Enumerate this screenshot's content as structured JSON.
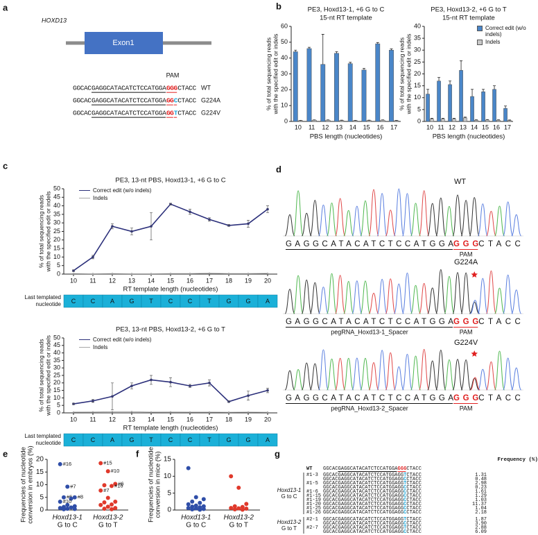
{
  "panel_labels": [
    "a",
    "b",
    "c",
    "d",
    "e",
    "f",
    "g"
  ],
  "panel_a": {
    "gene": "HOXD13",
    "exon": "Exon1",
    "pam": "PAM",
    "sequences": [
      {
        "label": "WT",
        "parts": [
          {
            "text": "GGCAC"
          },
          {
            "text": "GAGGCATACATCTCCATGGA",
            "style": "underline"
          },
          {
            "text": "GGG",
            "style": "pam"
          },
          {
            "text": "CTACC"
          }
        ]
      },
      {
        "label": "G224A",
        "parts": [
          {
            "text": "GGCAC"
          },
          {
            "text": "GAGGCATACATCTCCATGGA",
            "style": "underline"
          },
          {
            "text": "GG",
            "style": "pam"
          },
          {
            "text": "C",
            "style": "edit"
          },
          {
            "text": "CTACC"
          }
        ]
      },
      {
        "label": "G224V",
        "parts": [
          {
            "text": "GGCAC"
          },
          {
            "text": "GAGGCATACATCTCCATGGA",
            "style": "underline"
          },
          {
            "text": "GG",
            "style": "pam"
          },
          {
            "text": "T",
            "style": "edit"
          },
          {
            "text": "CTACC"
          }
        ]
      }
    ]
  },
  "chart_data": [
    {
      "type": "bar",
      "title": [
        "PE3, Hoxd13-1, +6 G to C",
        "15-nt RT template"
      ],
      "xlabel": "PBS length (nucleotides)",
      "ylabel": [
        "% of total sequencing reads",
        "with the specified edit or indels"
      ],
      "categories": [
        "10",
        "11",
        "12",
        "13",
        "14",
        "15",
        "16",
        "17"
      ],
      "series": [
        {
          "name": "Correct edit (w/o indels)",
          "color": "#4a86c8",
          "values": [
            44,
            46,
            36,
            43,
            36.5,
            32.5,
            49,
            45
          ],
          "errors": [
            1,
            0.8,
            19,
            1,
            0.8,
            1,
            0.8,
            0.8
          ]
        },
        {
          "name": "Indels",
          "color": "#c8c8c8",
          "values": [
            0.5,
            0.8,
            0.8,
            0.6,
            0.5,
            0.6,
            0.8,
            0.5
          ],
          "errors": [
            0.2,
            0.2,
            0.2,
            0.2,
            0.2,
            0.2,
            0.2,
            0.2
          ]
        }
      ],
      "ylim": [
        0,
        60
      ],
      "yticks": [
        0,
        10,
        20,
        30,
        40,
        50,
        60
      ]
    },
    {
      "type": "bar",
      "title": [
        "PE3, Hoxd13-2, +6 G to T",
        "15-nt RT template"
      ],
      "xlabel": "PBS length (nucleotides)",
      "ylabel": [
        "% of total sequencing reads",
        "with the specified edit or indels"
      ],
      "categories": [
        "10",
        "11",
        "12",
        "13",
        "14",
        "15",
        "16",
        "17"
      ],
      "series": [
        {
          "name": "Correct edit (w/o indels)",
          "color": "#4a86c8",
          "values": [
            11.5,
            17,
            15.5,
            21.5,
            10.5,
            12.5,
            13.5,
            5.5
          ],
          "errors": [
            2,
            1.5,
            1.5,
            4,
            3,
            1,
            1.5,
            1
          ]
        },
        {
          "name": "Indels",
          "color": "#c8c8c8",
          "values": [
            1,
            1,
            1,
            1.5,
            0.5,
            0.6,
            0.5,
            0.4
          ],
          "errors": [
            0.3,
            0.3,
            0.3,
            0.3,
            0.2,
            0.2,
            0.2,
            0.2
          ]
        }
      ],
      "ylim": [
        0,
        40
      ],
      "yticks": [
        0,
        5,
        10,
        15,
        20,
        25,
        30,
        35,
        40
      ],
      "legend": "upper right"
    },
    {
      "type": "line",
      "title": [
        "PE3, 13-nt PBS, Hoxd13-1, +6 G to C"
      ],
      "xlabel": "RT template length (nucleotides)",
      "ylabel": [
        "% of total sequencing reads",
        "with the specified edit or indels"
      ],
      "categories": [
        "10",
        "11",
        "12",
        "13",
        "14",
        "15",
        "16",
        "17",
        "18",
        "19",
        "20"
      ],
      "series": [
        {
          "name": "Correct edit (w/o indels)",
          "color": "#2b2f7a",
          "values": [
            2,
            10,
            28,
            25,
            28,
            41,
            36.5,
            32,
            28.5,
            29.5,
            38
          ],
          "errors": [
            0.5,
            1,
            1.5,
            2,
            8,
            0.5,
            1.5,
            1,
            0.5,
            2,
            2
          ]
        },
        {
          "name": "Indels",
          "color": "#a6a6a6",
          "values": [
            0.3,
            0.2,
            0.3,
            0.2,
            0.2,
            0.3,
            0.3,
            0.5,
            0.3,
            0.3,
            0.4
          ]
        }
      ],
      "ylim": [
        0,
        50
      ],
      "yticks": [
        0,
        5,
        10,
        15,
        20,
        25,
        30,
        35,
        40,
        45,
        50
      ],
      "legend": "upper left",
      "nucleotide_label": "Last templated nucleotide",
      "nucleotides": [
        "C",
        "C",
        "A",
        "G",
        "T",
        "C",
        "C",
        "T",
        "G",
        "G",
        "A"
      ]
    },
    {
      "type": "line",
      "title": [
        "PE3, 13-nt PBS, Hoxd13-2, +6 G to T"
      ],
      "xlabel": "RT template length (nucleotides)",
      "ylabel": [
        "% of total sequencing reads",
        "with the specified edit or indels"
      ],
      "categories": [
        "10",
        "11",
        "12",
        "13",
        "14",
        "15",
        "16",
        "17",
        "18",
        "19",
        "20"
      ],
      "series": [
        {
          "name": "Correct edit (w/o indels)",
          "color": "#2b2f7a",
          "values": [
            6,
            8,
            11,
            18,
            22,
            20.5,
            18,
            20,
            7.5,
            11.5,
            15
          ],
          "errors": [
            0.5,
            1,
            9,
            2,
            3,
            3,
            1,
            2,
            0.5,
            3,
            1.5
          ]
        },
        {
          "name": "Indels",
          "color": "#a6a6a6",
          "values": [
            0.5,
            0.6,
            0.8,
            0.8,
            0.5,
            0.6,
            0.5,
            0.5,
            0.4,
            0.5,
            0.4
          ]
        }
      ],
      "ylim": [
        0,
        50
      ],
      "yticks": [
        0,
        5,
        10,
        15,
        20,
        25,
        30,
        35,
        40,
        45,
        50
      ],
      "legend": "upper left",
      "nucleotide_label": "Last templated nucleotide",
      "nucleotides": [
        "C",
        "C",
        "A",
        "G",
        "T",
        "C",
        "C",
        "T",
        "G",
        "G",
        "A"
      ]
    },
    {
      "type": "strip",
      "ylabel": [
        "Frequencies of nucleotide",
        "conversion in embryos (%)"
      ],
      "categories": [
        [
          "Hoxd13-1",
          "G to C"
        ],
        [
          "Hoxd13-2",
          "G to T"
        ]
      ],
      "series": [
        {
          "color": "#2f4ea8",
          "values": [
            18.1,
            9.2,
            5.0,
            5.0,
            4.5,
            3.3,
            2.0,
            1.5,
            1.2,
            1.0,
            0.8,
            0.5,
            0.4,
            0.3
          ],
          "point_labels": [
            "#16",
            "#7",
            "#8",
            "#6",
            null,
            "#10",
            null,
            null,
            null,
            null,
            null,
            null,
            null,
            null
          ]
        },
        {
          "color": "#e0392b",
          "values": [
            18.5,
            15.3,
            10.3,
            9.8,
            9.5,
            7.7,
            4.8,
            3.3,
            3.0,
            2.2,
            2.0,
            1.3,
            0.8,
            0.5,
            0.3
          ],
          "point_labels": [
            "#15",
            "#10",
            "#6",
            null,
            "#16",
            "#7",
            null,
            null,
            null,
            null,
            null,
            null,
            null,
            null,
            null
          ]
        }
      ],
      "ylim": [
        0,
        20
      ],
      "yticks": [
        0,
        5,
        10,
        15,
        20
      ]
    },
    {
      "type": "strip",
      "ylabel": [
        "Frequencies of nucleotide",
        "conversion in mice (%)"
      ],
      "categories": [
        [
          "Hoxd13-1",
          "G to C"
        ],
        [
          "Hoxd13-2",
          "G to T"
        ]
      ],
      "series": [
        {
          "color": "#2f4ea8",
          "values": [
            12.4,
            3.8,
            3.2,
            2.5,
            2.1,
            1.7,
            1.3,
            1.1,
            1.0,
            0.8,
            0.6,
            0.5,
            0.3,
            0.2,
            0.1
          ]
        },
        {
          "color": "#e0392b",
          "values": [
            10.0,
            6.6,
            1.8,
            1.1,
            0.9,
            0.6,
            0.5,
            0.4,
            0.2,
            0.1
          ]
        }
      ],
      "ylim": [
        0,
        15
      ],
      "yticks": [
        0,
        5,
        10,
        15
      ]
    }
  ],
  "panel_d": {
    "tracks": [
      {
        "label": "WT",
        "parts": [
          {
            "text": "GAGGCATACATCTCCATGGA",
            "style": "underline"
          },
          {
            "text": "GGG",
            "style": "pam"
          },
          {
            "text": "CTACC"
          }
        ],
        "pam": "PAM"
      },
      {
        "label": "G224A",
        "parts": [
          {
            "text": "GAGGCATACATCTCCATGGA",
            "style": "underline"
          },
          {
            "text": "GGG",
            "style": "pam"
          },
          {
            "text": "CTACC"
          }
        ],
        "spacer": "pegRNA_Hoxd13-1_Spacer",
        "pam": "PAM"
      },
      {
        "label": "G224V",
        "parts": [
          {
            "text": "GAGGCATACATCTCCATGGA",
            "style": "underline"
          },
          {
            "text": "GGG",
            "style": "pam"
          },
          {
            "text": "CTACC"
          }
        ],
        "spacer": "pegRNA_Hoxd13-2_Spacer",
        "pam": "PAM"
      }
    ]
  },
  "panel_g": {
    "header": "Frequency (%)",
    "wt": {
      "label": "WT",
      "parts": [
        {
          "text": "GGCAC"
        },
        {
          "text": "GAGGCATACATCTCCATGGA",
          "style": "underline"
        },
        {
          "text": "GGG",
          "style": "pam"
        },
        {
          "text": "CTACC"
        }
      ]
    },
    "groups": [
      {
        "label": [
          "Hoxd13-1",
          "G to C"
        ],
        "samples": [
          {
            "id": "#1-3",
            "rows": [
              {
                "parts": [
                  {
                    "text": "GGCACGAGGCATACATCTCCATGGAGG"
                  },
                  {
                    "text": "T",
                    "style": "edit"
                  },
                  {
                    "text": "CTACC"
                  }
                ],
                "frequency": "1.31"
              },
              {
                "parts": [
                  {
                    "text": "GGCACGAGGCATACATCTCCATGGAGG"
                  },
                  {
                    "text": "C",
                    "style": "edit"
                  },
                  {
                    "text": "CTACC"
                  }
                ],
                "frequency": "0.48"
              }
            ]
          },
          {
            "id": "#1-5",
            "rows": [
              {
                "parts": [
                  {
                    "text": "GGCACGAGGCATACATCTCCATGGAGG"
                  },
                  {
                    "text": "T",
                    "style": "edit"
                  },
                  {
                    "text": "CTACC"
                  }
                ],
                "frequency": "2.98"
              },
              {
                "parts": [
                  {
                    "text": "GGCACGAGGCATACATCTCCATGGAGG"
                  },
                  {
                    "text": "C",
                    "style": "edit"
                  },
                  {
                    "text": "CTACC"
                  }
                ],
                "frequency": "0.23"
              }
            ]
          },
          {
            "id": "#1-6",
            "rows": [
              {
                "parts": [
                  {
                    "text": "GGCACGAGGCATACATCTCCATGGAGG"
                  },
                  {
                    "text": "C",
                    "style": "edit"
                  },
                  {
                    "text": "CTACC"
                  }
                ],
                "frequency": "1.61"
              }
            ]
          },
          {
            "id": "#1-15",
            "rows": [
              {
                "parts": [
                  {
                    "text": "GGCACGAGGCATACATCTCCATGGAGG"
                  },
                  {
                    "text": "C",
                    "style": "edit"
                  },
                  {
                    "text": "CTACC"
                  }
                ],
                "frequency": "1.29"
              }
            ]
          },
          {
            "id": "#1-19",
            "rows": [
              {
                "parts": [
                  {
                    "text": "GGCACGAGGCATACATCTCCATGGAGG"
                  },
                  {
                    "text": "C",
                    "style": "edit"
                  },
                  {
                    "text": "CTACC"
                  }
                ],
                "frequency": "1.03"
              }
            ]
          },
          {
            "id": "#1-20",
            "rows": [
              {
                "parts": [
                  {
                    "text": "GGCACGAGGCATACATCTCCATGGAGG"
                  },
                  {
                    "text": "C",
                    "style": "edit"
                  },
                  {
                    "text": "CTACC"
                  }
                ],
                "frequency": "11.37"
              }
            ]
          },
          {
            "id": "#1-25",
            "rows": [
              {
                "parts": [
                  {
                    "text": "GGCACGAGGCATACATCTCCATGGAGG"
                  },
                  {
                    "text": "C",
                    "style": "edit"
                  },
                  {
                    "text": "CTACC"
                  }
                ],
                "frequency": "1.04"
              }
            ]
          },
          {
            "id": "#1-26",
            "rows": [
              {
                "parts": [
                  {
                    "text": "GGCACGAGGCATACATCTCCATGGAGG"
                  },
                  {
                    "text": "C",
                    "style": "edit"
                  },
                  {
                    "text": "CTACC"
                  }
                ],
                "frequency": "2.18"
              }
            ]
          }
        ]
      },
      {
        "label": [
          "Hoxd13-2",
          "G to T"
        ],
        "samples": [
          {
            "id": "#2-1",
            "rows": [
              {
                "parts": [
                  {
                    "text": "GGCACGAGGCATACATCTCCATGGAGG"
                  },
                  {
                    "text": "T",
                    "style": "edit"
                  },
                  {
                    "text": "CTACC"
                  }
                ],
                "frequency": "1.87"
              },
              {
                "parts": [
                  {
                    "text": "GGCACGAGGCATACATCTCCATGGAGG"
                  },
                  {
                    "text": "C",
                    "style": "edit"
                  },
                  {
                    "text": "CTACC"
                  }
                ],
                "frequency": "3.90"
              }
            ]
          },
          {
            "id": "#2-7",
            "rows": [
              {
                "parts": [
                  {
                    "text": "GGCACGAGGCATACATCTCCATGGAGG"
                  },
                  {
                    "text": "T",
                    "style": "edit"
                  },
                  {
                    "text": "CTACC"
                  }
                ],
                "frequency": "2.88"
              },
              {
                "parts": [
                  {
                    "text": "GGCACGAGGCATACATCTCCATGGAGG"
                  },
                  {
                    "text": "C",
                    "style": "edit"
                  },
                  {
                    "text": "CTACC"
                  }
                ],
                "frequency": "6.09"
              }
            ]
          }
        ]
      }
    ]
  }
}
